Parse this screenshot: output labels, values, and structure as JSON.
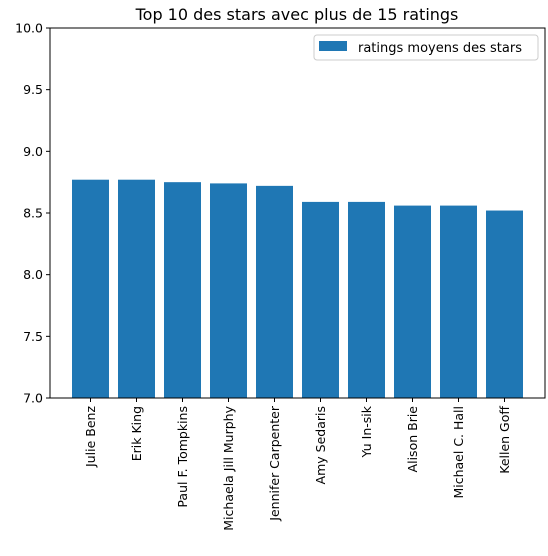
{
  "chart_data": {
    "type": "bar",
    "title": "Top 10 des stars avec plus de 15 ratings",
    "xlabel": "",
    "ylabel": "",
    "ylim": [
      7.0,
      10.0
    ],
    "yticks": [
      "7.0",
      "7.5",
      "8.0",
      "8.5",
      "9.0",
      "9.5",
      "10.0"
    ],
    "categories": [
      "Julie Benz",
      "Erik King",
      "Paul F. Tompkins",
      "Michaela Jill Murphy",
      "Jennifer Carpenter",
      "Amy Sedaris",
      "Yu In-sik",
      "Alison Brie",
      "Michael C. Hall",
      "Kellen Goff"
    ],
    "series": [
      {
        "name": "ratings moyens des stars",
        "color": "#1f77b4",
        "values": [
          8.77,
          8.77,
          8.75,
          8.74,
          8.72,
          8.59,
          8.59,
          8.56,
          8.56,
          8.52
        ]
      }
    ],
    "legend": "top-right",
    "grid": false
  }
}
